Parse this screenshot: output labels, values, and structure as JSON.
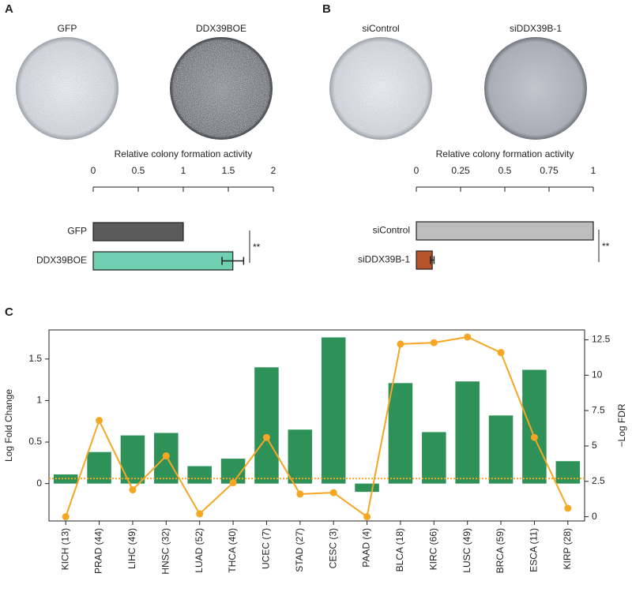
{
  "chart_data": [
    {
      "type": "hbar",
      "panel_label": "A",
      "image_labels": [
        "GFP",
        "DDX39BOE"
      ],
      "title": "Relative colony formation activity",
      "categories": [
        "GFP",
        "DDX39BOE"
      ],
      "values": [
        1,
        1.55
      ],
      "errors": [
        null,
        0.12
      ],
      "colors": [
        "#5b5b5b",
        "#6fcfb0"
      ],
      "xlim": [
        0,
        2
      ],
      "xticks": [
        0,
        0.5,
        1,
        1.5,
        2
      ],
      "annotation": "**"
    },
    {
      "type": "hbar",
      "panel_label": "B",
      "image_labels": [
        "siControl",
        "siDDX39B-1"
      ],
      "title": "Relative colony formation activity",
      "categories": [
        "siControl",
        "siDDX39B-1"
      ],
      "values": [
        1,
        0.09
      ],
      "errors": [
        null,
        0.01
      ],
      "colors": [
        "#bdbdbd",
        "#b5532a"
      ],
      "xlim": [
        0,
        1
      ],
      "xticks": [
        0,
        0.25,
        0.5,
        0.75,
        1
      ],
      "annotation": "**"
    },
    {
      "type": "combo",
      "panel_label": "C",
      "categories": [
        "KICH (13)",
        "PRAD (44)",
        "LIHC (49)",
        "HNSC (32)",
        "LUAD (52)",
        "THCA (40)",
        "UCEC (7)",
        "STAD (27)",
        "CESC (3)",
        "PAAD (4)",
        "BLCA (18)",
        "KIRC (66)",
        "LUSC (49)",
        "BRCA (59)",
        "ESCA (11)",
        "KIRP (28)"
      ],
      "ylabel": "Log Fold Change",
      "y2label": "−Log FDR",
      "series": [
        {
          "color": "#2e9158",
          "values": [
            0.11,
            0.38,
            0.58,
            0.61,
            0.21,
            0.3,
            1.4,
            0.65,
            1.76,
            -0.1,
            1.21,
            0.62,
            1.23,
            0.82,
            1.37,
            0.27
          ]
        },
        {
          "color": "#f5a623",
          "axis": "y2",
          "values": [
            0,
            6.8,
            1.9,
            4.3,
            0.2,
            2.4,
            5.6,
            1.6,
            1.7,
            0,
            12.2,
            12.3,
            12.7,
            11.6,
            5.6,
            0.6
          ]
        }
      ],
      "ylim": [
        -0.45,
        1.85
      ],
      "yticks": [
        0,
        0.5,
        1,
        1.5
      ],
      "y2lim": [
        -0.3,
        13.2
      ],
      "y2ticks": [
        0,
        2.5,
        5,
        7.5,
        10,
        12.5
      ],
      "threshold": 2.7,
      "threshold_color": "#f5a623",
      "ylabel_color": "#2e9158",
      "y2label_color": "#f5a623"
    }
  ]
}
